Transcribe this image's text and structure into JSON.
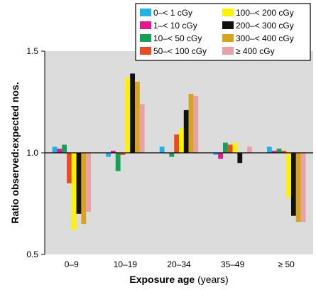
{
  "chart_data": {
    "type": "bar",
    "categories": [
      "0–9",
      "10–19",
      "20–34",
      "35–49",
      "≥ 50"
    ],
    "xlabel": {
      "bold": "Exposure age",
      "rest": " (years)"
    },
    "ylabel": "Ratio observed:expected nos.",
    "ylim": [
      0.5,
      1.5
    ],
    "yticks": [
      "0.5",
      "1.0",
      "1.5"
    ],
    "ytick_values": [
      0.5,
      1.0,
      1.5
    ],
    "reference_line": 1.0,
    "grid": false,
    "legend_position": "top-right",
    "series": [
      {
        "name": "0–< 1 cGy",
        "color": "#1fb3e6",
        "values": [
          1.03,
          0.98,
          1.03,
          0.99,
          1.03
        ]
      },
      {
        "name": "1–< 10 cGy",
        "color": "#e5178d",
        "values": [
          1.02,
          1.01,
          1.0,
          0.97,
          1.01
        ]
      },
      {
        "name": "10–< 50 cGy",
        "color": "#15a055",
        "values": [
          1.04,
          0.91,
          0.98,
          1.05,
          1.02
        ]
      },
      {
        "name": "50–< 100 cGy",
        "color": "#e84c24",
        "values": [
          0.85,
          0.99,
          1.09,
          1.04,
          1.01
        ]
      },
      {
        "name": "100–< 200 cGy",
        "color": "#fff200",
        "values": [
          0.62,
          1.37,
          1.12,
          1.05,
          0.78
        ]
      },
      {
        "name": "200–< 300 cGy",
        "color": "#111111",
        "values": [
          0.7,
          1.39,
          1.21,
          0.95,
          0.69
        ]
      },
      {
        "name": "300–< 400 cGy",
        "color": "#d8a31e",
        "values": [
          0.65,
          1.35,
          1.29,
          1.0,
          0.66
        ]
      },
      {
        "name": "≥ 400 cGy",
        "color": "#e8a2a6",
        "values": [
          0.71,
          1.24,
          1.28,
          1.03,
          0.66
        ]
      }
    ]
  },
  "colors": {
    "background": "#ffffff",
    "plot_area": "#dcdcdc"
  }
}
